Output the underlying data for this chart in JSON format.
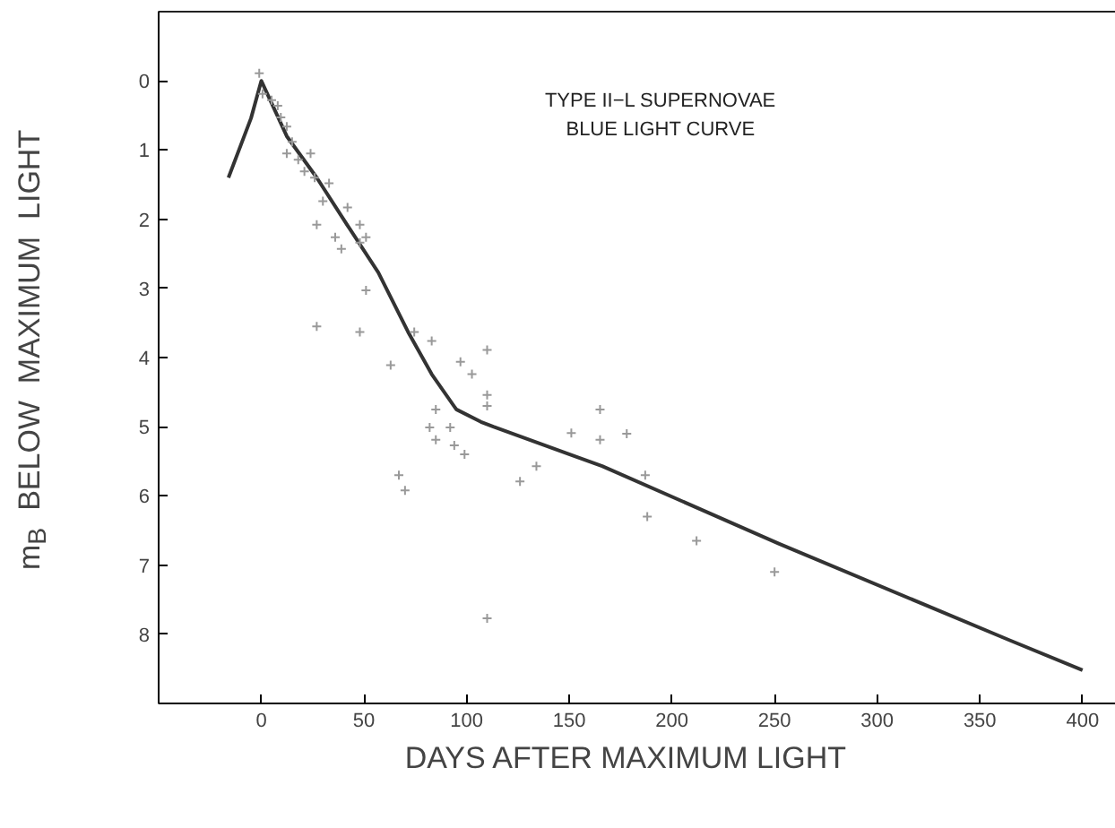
{
  "chart_data": {
    "type": "scatter",
    "xlabel": "DAYS  AFTER  MAXIMUM  LIGHT",
    "ylabel": "m$_{B}$   BELOW  MAXIMUM  LIGHT",
    "annotations": [
      "TYPE II−L SUPERNOVAE",
      "BLUE LIGHT CURVE"
    ],
    "xlim": [
      -50,
      418
    ],
    "ylim": [
      9,
      -1
    ],
    "xticks": [
      0,
      50,
      100,
      150,
      200,
      250,
      300,
      350,
      400
    ],
    "yticks": [
      0,
      1,
      2,
      3,
      4,
      5,
      6,
      7,
      8
    ],
    "grid": false,
    "series": [
      {
        "type": "line",
        "color": "#333333",
        "line_style": "solid",
        "x": [
          -16,
          -5,
          0,
          12.4,
          27,
          42,
          57,
          71.5,
          83,
          95,
          107,
          113,
          166,
          252,
          364,
          400
        ],
        "values": [
          1.4,
          0.54,
          0,
          0.8,
          1.4,
          2.09,
          2.77,
          3.63,
          4.24,
          4.75,
          4.93,
          5.0,
          5.57,
          6.69,
          8.08,
          8.52
        ]
      },
      {
        "color": "#999999",
        "marker": "cross",
        "x": [
          -1,
          0.6,
          5,
          9.5,
          12.4,
          8,
          15,
          12.4,
          18,
          24,
          21,
          26,
          33,
          30,
          27,
          36,
          42,
          48,
          48,
          51,
          39,
          51,
          27,
          48,
          63,
          74.5,
          83,
          97,
          110,
          102.6,
          110,
          110,
          85,
          82,
          85,
          92,
          94,
          99,
          67,
          70,
          126,
          134,
          151,
          165,
          165,
          178,
          187,
          188,
          212,
          250,
          110
        ],
        "values": [
          -0.11,
          0.19,
          0.28,
          0.53,
          0.66,
          0.36,
          0.88,
          1.05,
          1.14,
          1.05,
          1.31,
          1.4,
          1.48,
          1.74,
          2.08,
          2.26,
          1.83,
          2.08,
          2.34,
          2.26,
          2.43,
          3.03,
          3.55,
          3.63,
          4.11,
          3.63,
          3.76,
          4.06,
          3.89,
          4.24,
          4.54,
          4.7,
          4.75,
          5.01,
          5.19,
          5.01,
          5.27,
          5.4,
          5.7,
          5.92,
          5.79,
          5.57,
          5.09,
          4.75,
          5.19,
          5.1,
          5.7,
          6.3,
          6.65,
          7.1,
          7.77
        ]
      }
    ]
  }
}
